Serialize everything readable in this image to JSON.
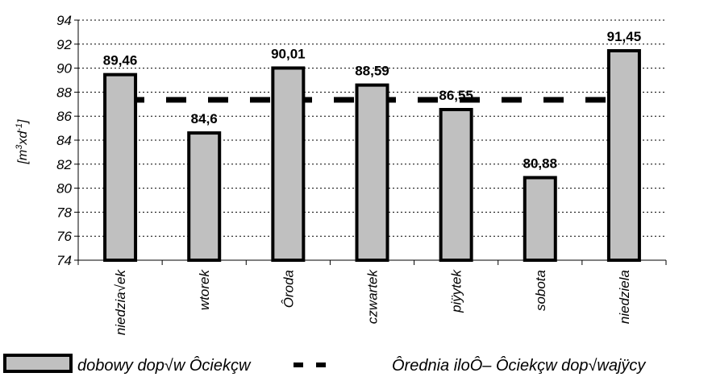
{
  "chart_data": {
    "type": "bar",
    "categories": [
      "niedzia√ek",
      "wtorek",
      "Ôroda",
      "czwartek",
      "piÿytek",
      "sobota",
      "niedziela"
    ],
    "series": [
      {
        "name": "dobowy dop√w Ôciekçw",
        "type": "bar",
        "values": [
          89.46,
          84.6,
          90.01,
          88.59,
          86.55,
          80.88,
          91.45
        ],
        "data_labels": [
          "89,46",
          "84,6",
          "90,01",
          "88,59",
          "86,55",
          "80,88",
          "91,45"
        ],
        "color": "#c0c0c0"
      },
      {
        "name": "Ôrednia iloÔ– Ôciekçw dop√wajÿcy",
        "type": "line",
        "style": "dashed",
        "values": [
          87.36,
          87.36,
          87.36,
          87.36,
          87.36,
          87.36,
          87.36
        ],
        "color": "#000000"
      }
    ],
    "ylabel": "[m3xd-1]",
    "ylim": [
      74,
      94
    ],
    "yticks": [
      "74",
      "76",
      "78",
      "80",
      "82",
      "84",
      "86",
      "88",
      "90",
      "92",
      "94"
    ],
    "grid": "horizontal dotted",
    "legend": "bottom"
  }
}
